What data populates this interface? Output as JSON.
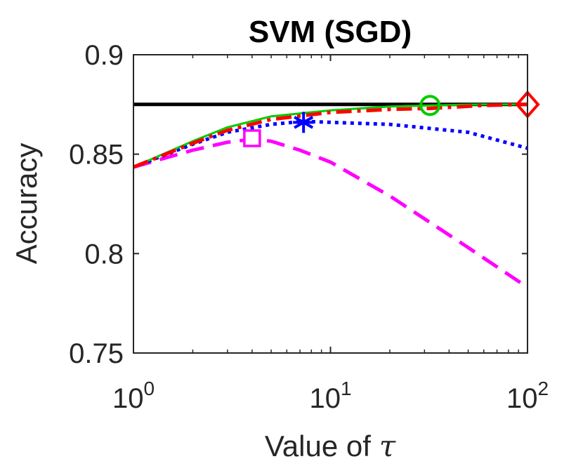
{
  "chart_data": {
    "type": "line",
    "title": "SVM (SGD)",
    "xlabel": "Value of",
    "xlabel_symbol": "τ",
    "ylabel": "Accuracy",
    "xscale": "log",
    "xlim": [
      1,
      100
    ],
    "ylim": [
      0.75,
      0.9
    ],
    "x_ticks": [
      {
        "value": 1,
        "base": "10",
        "exp": "0"
      },
      {
        "value": 10,
        "base": "10",
        "exp": "1"
      },
      {
        "value": 100,
        "base": "10",
        "exp": "2"
      }
    ],
    "y_ticks": [
      {
        "value": 0.75,
        "label": "0.75"
      },
      {
        "value": 0.8,
        "label": "0.8"
      },
      {
        "value": 0.85,
        "label": "0.85"
      },
      {
        "value": 0.9,
        "label": "0.9"
      }
    ],
    "series": [
      {
        "name": "baseline",
        "color": "#000000",
        "style": "solid",
        "marker": "none",
        "x": [
          1,
          100
        ],
        "y": [
          0.875,
          0.875
        ]
      },
      {
        "name": "magenta-dashed",
        "color": "#ff00ff",
        "style": "dashed",
        "marker": "square",
        "x": [
          1,
          2,
          3,
          4,
          5,
          7,
          10,
          20,
          50,
          100
        ],
        "y": [
          0.8435,
          0.852,
          0.856,
          0.8575,
          0.8565,
          0.852,
          0.846,
          0.829,
          0.803,
          0.783
        ],
        "marker_point": {
          "x": 4,
          "y": 0.858
        }
      },
      {
        "name": "blue-dotted",
        "color": "#0000ff",
        "style": "dotted",
        "marker": "asterisk",
        "x": [
          1,
          2,
          3,
          5,
          7.3,
          10,
          20,
          50,
          100
        ],
        "y": [
          0.8435,
          0.855,
          0.861,
          0.865,
          0.8665,
          0.866,
          0.865,
          0.861,
          0.853
        ],
        "marker_point": {
          "x": 7.3,
          "y": 0.866
        }
      },
      {
        "name": "green-solid",
        "color": "#00cc00",
        "style": "solid",
        "marker": "circle",
        "x": [
          1,
          2,
          3,
          5,
          10,
          20,
          32,
          60,
          100
        ],
        "y": [
          0.8435,
          0.8565,
          0.8635,
          0.869,
          0.872,
          0.874,
          0.8745,
          0.875,
          0.875
        ],
        "marker_point": {
          "x": 32,
          "y": 0.8745
        }
      },
      {
        "name": "red-dashdot",
        "color": "#ff0000",
        "style": "dashdot",
        "marker": "diamond",
        "x": [
          1,
          2,
          3,
          5,
          10,
          20,
          32,
          60,
          100
        ],
        "y": [
          0.8435,
          0.8555,
          0.862,
          0.8675,
          0.871,
          0.8725,
          0.873,
          0.8745,
          0.875
        ],
        "marker_point": {
          "x": 100,
          "y": 0.875
        }
      }
    ]
  }
}
